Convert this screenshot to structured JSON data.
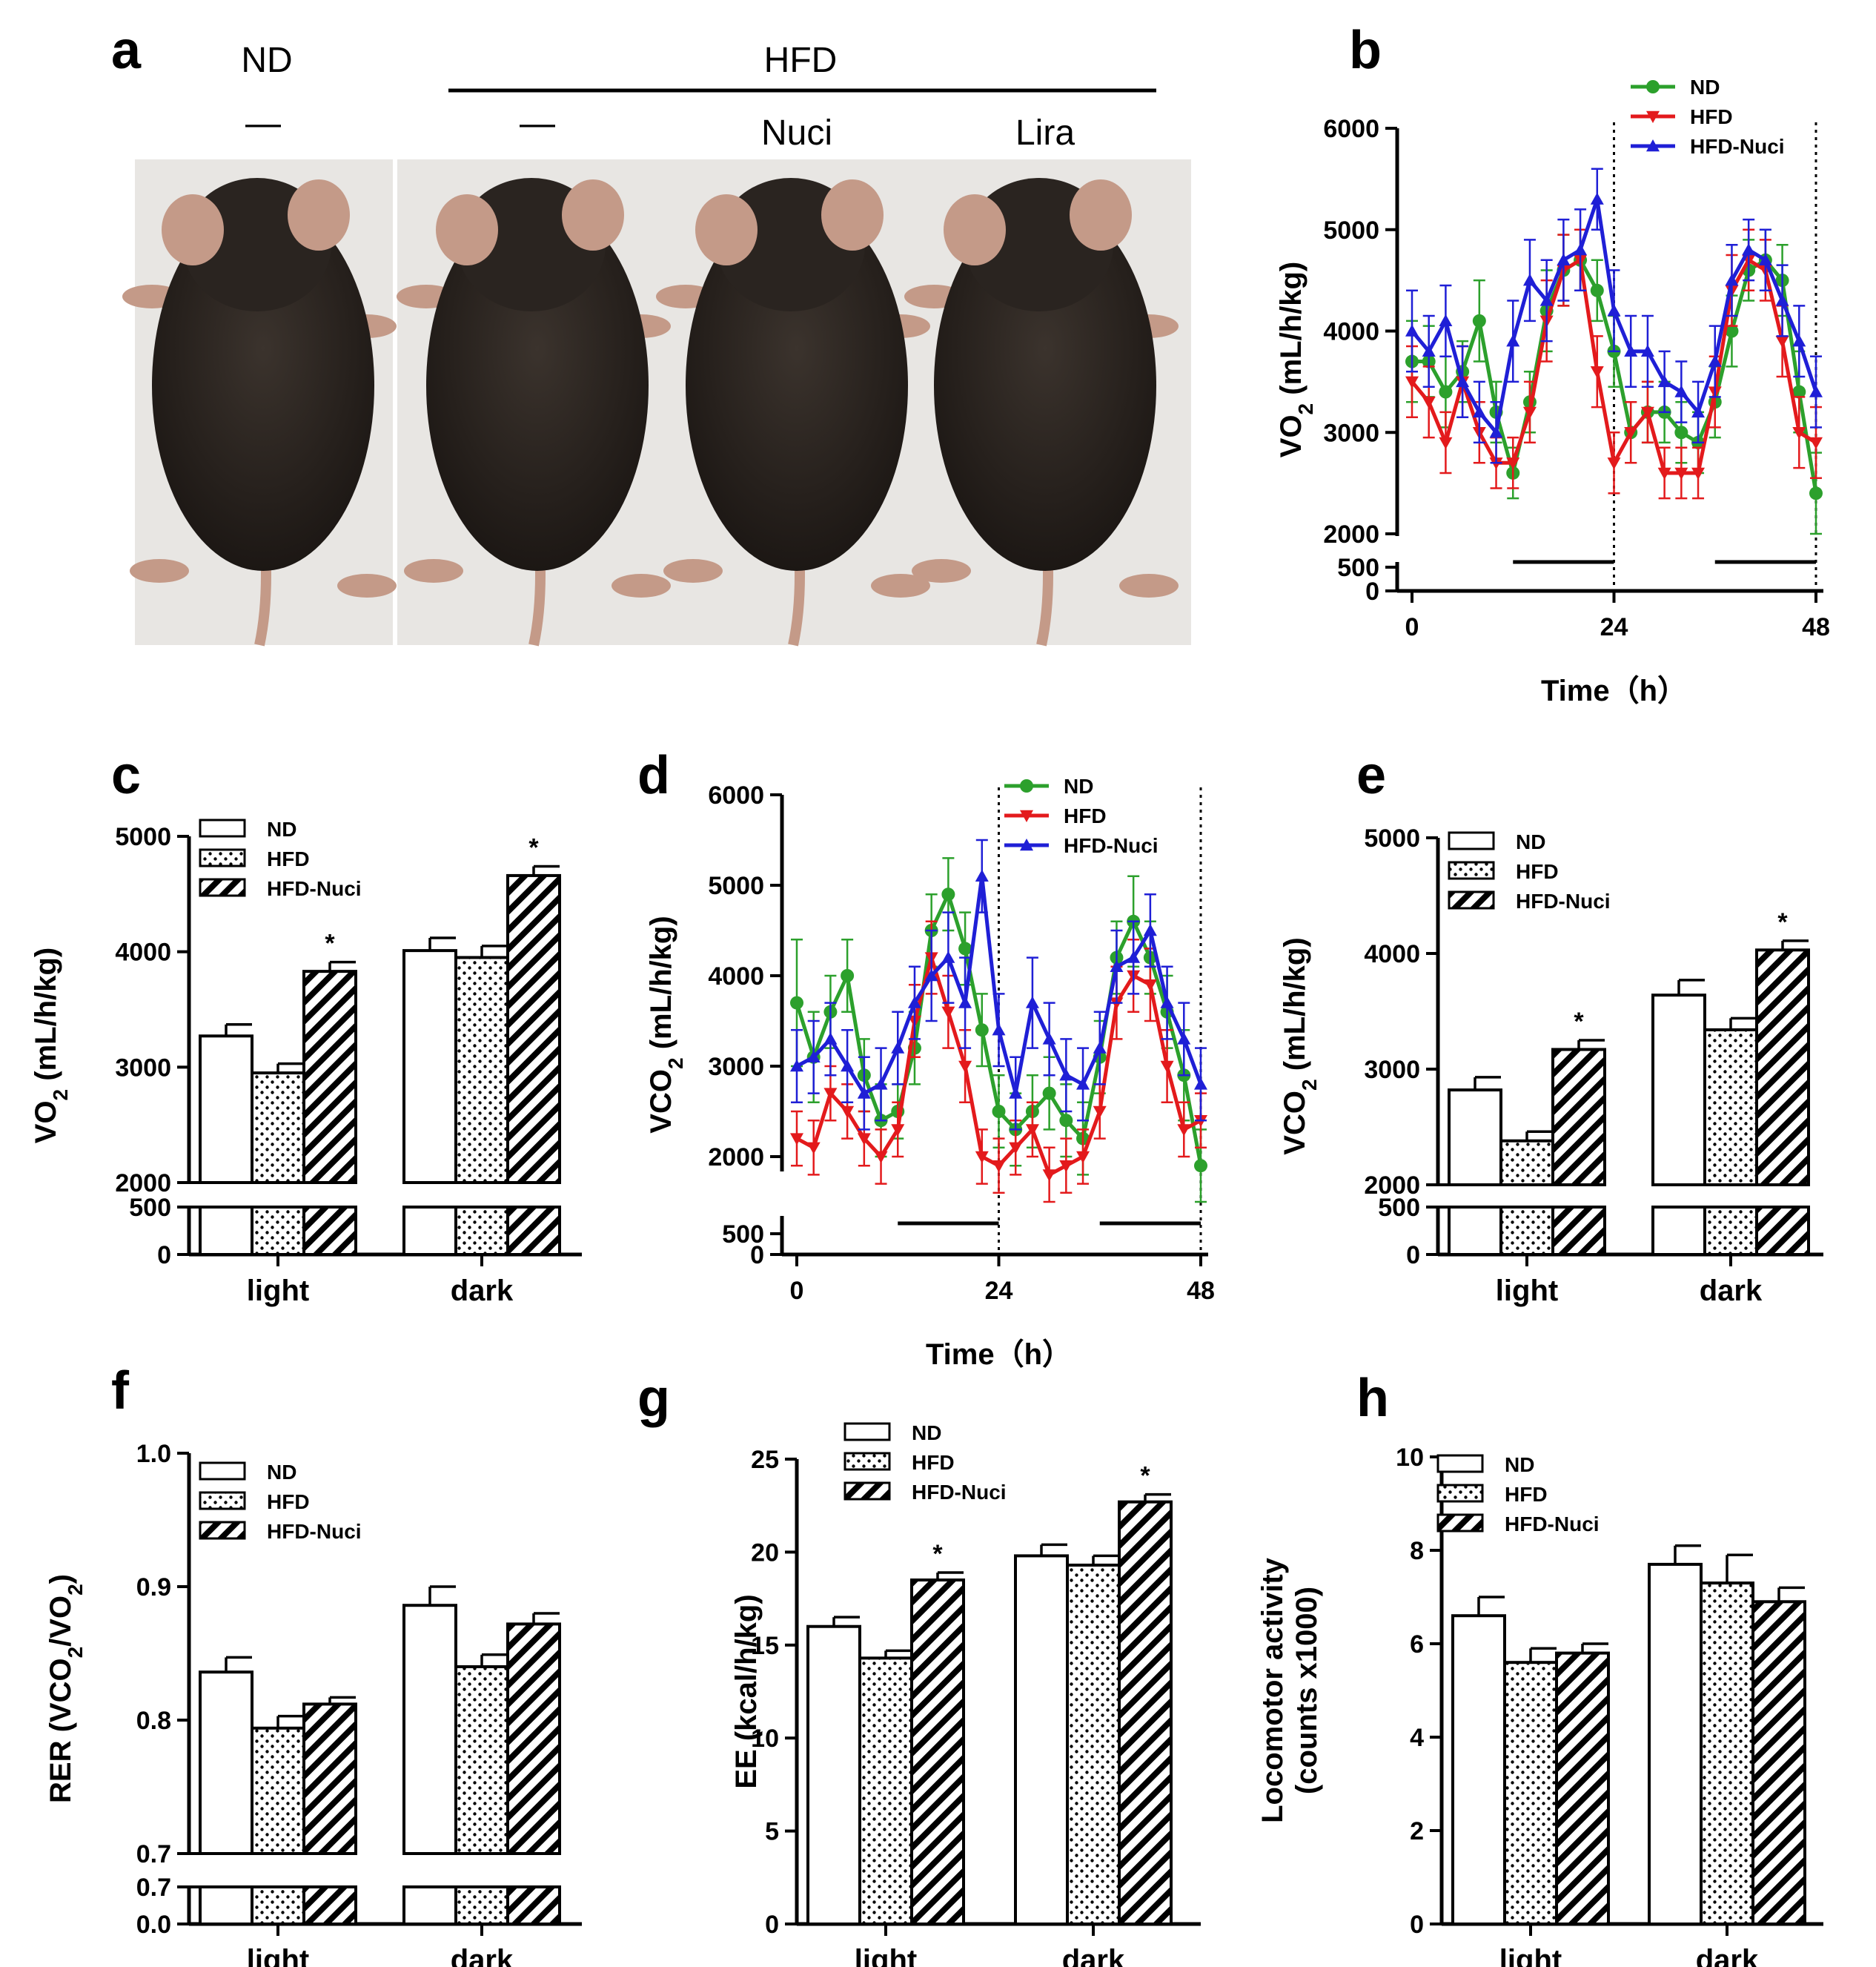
{
  "figure": {
    "colors": {
      "nd": "#2ca02c",
      "hfd": "#e31a1c",
      "hfd_nuci": "#1f1fd6",
      "axis": "#000000",
      "photo_background": "#e8e6e3",
      "mouse_fur": "#2a2420",
      "mouse_skin": "#c49a88"
    }
  },
  "panel_a": {
    "letter": "a",
    "group_nd": "ND",
    "group_hfd": "HFD",
    "treatments": [
      "—",
      "—",
      "Nuci",
      "Lira"
    ],
    "photo_description_icon": "mouse-photo"
  },
  "chart_data": [
    {
      "id": "b",
      "letter": "b",
      "type": "line",
      "title": "",
      "xlabel": "Time（h）",
      "ylabel": "VO2 (mL/h/kg)",
      "xlim": [
        0,
        48
      ],
      "xticks": [
        0,
        24,
        48
      ],
      "ylim": [
        2000,
        6000
      ],
      "yticks": [
        2000,
        3000,
        4000,
        5000,
        6000
      ],
      "broken_axis_ticks": [
        0,
        500
      ],
      "grid": false,
      "legend_position": "top-right",
      "dark_phase_bars": [
        [
          12,
          24
        ],
        [
          36,
          48
        ]
      ],
      "dividers": [
        24,
        48
      ],
      "series": [
        {
          "name": "ND",
          "color_key": "nd",
          "marker": "circle",
          "x": [
            0,
            2,
            4,
            6,
            8,
            10,
            12,
            14,
            16,
            18,
            20,
            22,
            24,
            26,
            28,
            30,
            32,
            34,
            36,
            38,
            40,
            42,
            44,
            46,
            48
          ],
          "y": [
            3700,
            3700,
            3400,
            3600,
            4100,
            3200,
            2600,
            3300,
            4200,
            4600,
            4700,
            4400,
            3800,
            3000,
            3200,
            3200,
            3000,
            2900,
            3300,
            4000,
            4600,
            4700,
            4500,
            3400,
            2400
          ],
          "err": [
            400,
            350,
            350,
            300,
            400,
            300,
            250,
            300,
            400,
            350,
            300,
            300,
            350,
            300,
            300,
            300,
            300,
            300,
            350,
            350,
            300,
            300,
            350,
            400,
            400
          ]
        },
        {
          "name": "HFD",
          "color_key": "hfd",
          "marker": "triangle-down",
          "x": [
            0,
            2,
            4,
            6,
            8,
            10,
            12,
            14,
            16,
            18,
            20,
            22,
            24,
            26,
            28,
            30,
            32,
            34,
            36,
            38,
            40,
            42,
            44,
            46,
            48
          ],
          "y": [
            3500,
            3300,
            2900,
            3500,
            3000,
            2700,
            2700,
            3200,
            4100,
            4600,
            4700,
            3600,
            2700,
            3000,
            3200,
            2600,
            2600,
            2600,
            3400,
            4400,
            4700,
            4600,
            3900,
            3000,
            2900
          ],
          "err": [
            350,
            350,
            300,
            350,
            300,
            250,
            250,
            300,
            400,
            350,
            300,
            350,
            300,
            300,
            300,
            250,
            250,
            250,
            350,
            350,
            300,
            300,
            350,
            350,
            350
          ]
        },
        {
          "name": "HFD-Nuci",
          "color_key": "hfd_nuci",
          "marker": "triangle-up",
          "x": [
            0,
            2,
            4,
            6,
            8,
            10,
            12,
            14,
            16,
            18,
            20,
            22,
            24,
            26,
            28,
            30,
            32,
            34,
            36,
            38,
            40,
            42,
            44,
            46,
            48
          ],
          "y": [
            4000,
            3800,
            4100,
            3500,
            3200,
            3000,
            3900,
            4500,
            4300,
            4700,
            4800,
            5300,
            4200,
            3800,
            3800,
            3500,
            3400,
            3200,
            3700,
            4500,
            4800,
            4700,
            4300,
            3900,
            3400
          ],
          "err": [
            400,
            350,
            350,
            350,
            300,
            300,
            400,
            400,
            400,
            400,
            400,
            300,
            400,
            350,
            350,
            300,
            300,
            300,
            350,
            350,
            300,
            300,
            350,
            350,
            350
          ]
        }
      ]
    },
    {
      "id": "c",
      "letter": "c",
      "type": "bar",
      "xlabel": "",
      "ylabel": "VO2 (mL/h/kg)",
      "categories": [
        "light",
        "dark"
      ],
      "ylim": [
        2000,
        5000
      ],
      "yticks": [
        2000,
        3000,
        4000,
        5000
      ],
      "broken_axis_ticks": [
        0,
        500
      ],
      "legend_position": "top-left",
      "series": [
        {
          "name": "ND",
          "pattern": "open",
          "values": [
            3270,
            4010
          ],
          "err": [
            100,
            110
          ],
          "stars": [
            "",
            ""
          ]
        },
        {
          "name": "HFD",
          "pattern": "dots",
          "values": [
            2950,
            3950
          ],
          "err": [
            80,
            100
          ],
          "stars": [
            "",
            ""
          ]
        },
        {
          "name": "HFD-Nuci",
          "pattern": "hatch",
          "values": [
            3830,
            4660
          ],
          "err": [
            80,
            80
          ],
          "stars": [
            "*",
            "*"
          ]
        }
      ]
    },
    {
      "id": "d",
      "letter": "d",
      "type": "line",
      "xlabel": "Time（h）",
      "ylabel": "VCO2 (mL/h/kg)",
      "xlim": [
        0,
        48
      ],
      "xticks": [
        0,
        24,
        48
      ],
      "ylim": [
        1500,
        6000
      ],
      "yticks": [
        2000,
        3000,
        4000,
        5000,
        6000
      ],
      "broken_axis_ticks": [
        0,
        500
      ],
      "grid": false,
      "legend_position": "top-right",
      "dark_phase_bars": [
        [
          12,
          24
        ],
        [
          36,
          48
        ]
      ],
      "dividers": [
        24,
        48
      ],
      "series": [
        {
          "name": "ND",
          "color_key": "nd",
          "marker": "circle",
          "x": [
            0,
            2,
            4,
            6,
            8,
            10,
            12,
            14,
            16,
            18,
            20,
            22,
            24,
            26,
            28,
            30,
            32,
            34,
            36,
            38,
            40,
            42,
            44,
            46,
            48
          ],
          "y": [
            3700,
            3100,
            3600,
            4000,
            2900,
            2400,
            2500,
            3200,
            4500,
            4900,
            4300,
            3400,
            2500,
            2300,
            2500,
            2700,
            2400,
            2200,
            3100,
            4200,
            4600,
            4200,
            3600,
            2900,
            1900
          ],
          "err": [
            700,
            500,
            400,
            400,
            400,
            400,
            300,
            400,
            400,
            400,
            400,
            400,
            400,
            400,
            400,
            400,
            400,
            400,
            400,
            400,
            500,
            400,
            400,
            500,
            400
          ]
        },
        {
          "name": "HFD",
          "color_key": "hfd",
          "marker": "triangle-down",
          "x": [
            0,
            2,
            4,
            6,
            8,
            10,
            12,
            14,
            16,
            18,
            20,
            22,
            24,
            26,
            28,
            30,
            32,
            34,
            36,
            38,
            40,
            42,
            44,
            46,
            48
          ],
          "y": [
            2200,
            2100,
            2700,
            2500,
            2200,
            2000,
            2300,
            3500,
            4200,
            3600,
            3000,
            2000,
            1900,
            2100,
            2300,
            1800,
            1900,
            2000,
            2500,
            3700,
            4000,
            3900,
            3000,
            2300,
            2400
          ],
          "err": [
            300,
            300,
            300,
            300,
            300,
            300,
            300,
            400,
            400,
            400,
            400,
            300,
            300,
            300,
            300,
            300,
            300,
            300,
            300,
            400,
            400,
            400,
            400,
            300,
            300
          ]
        },
        {
          "name": "HFD-Nuci",
          "color_key": "hfd_nuci",
          "marker": "triangle-up",
          "x": [
            0,
            2,
            4,
            6,
            8,
            10,
            12,
            14,
            16,
            18,
            20,
            22,
            24,
            26,
            28,
            30,
            32,
            34,
            36,
            38,
            40,
            42,
            44,
            46,
            48
          ],
          "y": [
            3000,
            3100,
            3300,
            3000,
            2700,
            2800,
            3200,
            3700,
            4000,
            4200,
            3700,
            5100,
            3400,
            2700,
            3700,
            3300,
            2900,
            2800,
            3200,
            4100,
            4200,
            4500,
            3700,
            3300,
            2800
          ],
          "err": [
            400,
            400,
            400,
            400,
            400,
            400,
            400,
            400,
            500,
            500,
            500,
            400,
            400,
            400,
            500,
            400,
            400,
            400,
            400,
            400,
            400,
            400,
            400,
            400,
            400
          ]
        }
      ]
    },
    {
      "id": "e",
      "letter": "e",
      "type": "bar",
      "xlabel": "",
      "ylabel": "VCO2 (mL/h/kg)",
      "categories": [
        "light",
        "dark"
      ],
      "ylim": [
        2000,
        5000
      ],
      "yticks": [
        2000,
        3000,
        4000,
        5000
      ],
      "broken_axis_ticks": [
        0,
        500
      ],
      "legend_position": "top-left",
      "series": [
        {
          "name": "ND",
          "pattern": "open",
          "values": [
            2820,
            3640
          ],
          "err": [
            110,
            130
          ],
          "stars": [
            "",
            ""
          ]
        },
        {
          "name": "HFD",
          "pattern": "dots",
          "values": [
            2380,
            3340
          ],
          "err": [
            80,
            100
          ],
          "stars": [
            "",
            ""
          ]
        },
        {
          "name": "HFD-Nuci",
          "pattern": "hatch",
          "values": [
            3170,
            4030
          ],
          "err": [
            80,
            80
          ],
          "stars": [
            "*",
            "*"
          ]
        }
      ]
    },
    {
      "id": "f",
      "letter": "f",
      "type": "bar",
      "xlabel": "",
      "ylabel": "RER (VCO2/VO2)",
      "categories": [
        "light",
        "dark"
      ],
      "ylim": [
        0.7,
        1.0
      ],
      "yticks": [
        0.7,
        0.8,
        0.9,
        1.0
      ],
      "ytick_labels": [
        "0.7",
        "0.8",
        "0.9",
        "1.0"
      ],
      "broken_axis_ticks": [
        0.0,
        0.7
      ],
      "broken_axis_labels": [
        "0.0",
        "0.7"
      ],
      "legend_position": "top-left",
      "series": [
        {
          "name": "ND",
          "pattern": "open",
          "values": [
            0.836,
            0.886
          ],
          "err": [
            0.011,
            0.014
          ],
          "stars": [
            "",
            ""
          ]
        },
        {
          "name": "HFD",
          "pattern": "dots",
          "values": [
            0.794,
            0.84
          ],
          "err": [
            0.009,
            0.009
          ],
          "stars": [
            "",
            ""
          ]
        },
        {
          "name": "HFD-Nuci",
          "pattern": "hatch",
          "values": [
            0.812,
            0.872
          ],
          "err": [
            0.005,
            0.008
          ],
          "stars": [
            "",
            ""
          ]
        }
      ]
    },
    {
      "id": "g",
      "letter": "g",
      "type": "bar",
      "xlabel": "",
      "ylabel": "EE (kcal/h/kg)",
      "categories": [
        "light",
        "dark"
      ],
      "ylim": [
        0,
        25
      ],
      "yticks": [
        0,
        5,
        10,
        15,
        20,
        25
      ],
      "legend_position": "top-left",
      "series": [
        {
          "name": "ND",
          "pattern": "open",
          "values": [
            16.0,
            19.8
          ],
          "err": [
            0.5,
            0.6
          ],
          "stars": [
            "",
            ""
          ]
        },
        {
          "name": "HFD",
          "pattern": "dots",
          "values": [
            14.3,
            19.3
          ],
          "err": [
            0.4,
            0.5
          ],
          "stars": [
            "",
            ""
          ]
        },
        {
          "name": "HFD-Nuci",
          "pattern": "hatch",
          "values": [
            18.5,
            22.7
          ],
          "err": [
            0.4,
            0.4
          ],
          "stars": [
            "*",
            "*"
          ]
        }
      ]
    },
    {
      "id": "h",
      "letter": "h",
      "type": "bar",
      "xlabel": "",
      "ylabel": "Locomotor activity (counts x1000)",
      "ylabel_lines": [
        "Locomotor activity",
        "(counts x1000)"
      ],
      "categories": [
        "light",
        "dark"
      ],
      "ylim": [
        0,
        10
      ],
      "yticks": [
        0,
        2,
        4,
        6,
        8,
        10
      ],
      "legend_position": "top-left",
      "series": [
        {
          "name": "ND",
          "pattern": "open",
          "values": [
            6.6,
            7.7
          ],
          "err": [
            0.4,
            0.4
          ],
          "stars": [
            "",
            ""
          ]
        },
        {
          "name": "HFD",
          "pattern": "dots",
          "values": [
            5.6,
            7.3
          ],
          "err": [
            0.3,
            0.6
          ],
          "stars": [
            "",
            ""
          ]
        },
        {
          "name": "HFD-Nuci",
          "pattern": "hatch",
          "values": [
            5.8,
            6.9
          ],
          "err": [
            0.2,
            0.3
          ],
          "stars": [
            "",
            ""
          ]
        }
      ]
    }
  ]
}
